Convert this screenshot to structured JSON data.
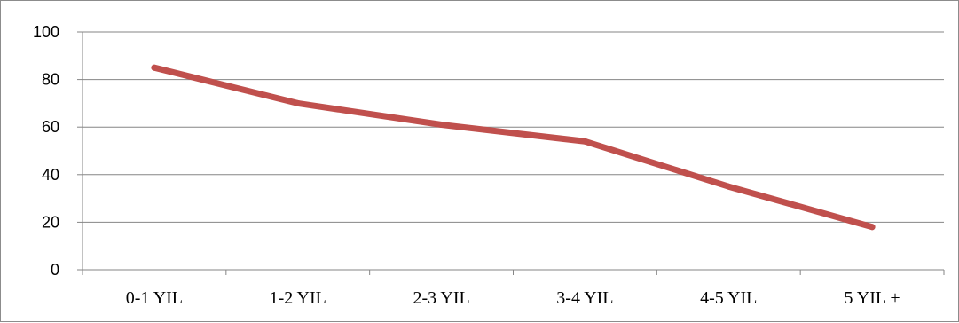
{
  "chart_data": {
    "type": "line",
    "title": "",
    "xlabel": "",
    "ylabel": "",
    "categories": [
      "0-1 YIL",
      "1-2 YIL",
      "2-3 YIL",
      "3-4 YIL",
      "4-5 YIL",
      "5 YIL +"
    ],
    "series": [
      {
        "values": [
          85,
          70,
          61,
          54,
          35,
          18
        ]
      }
    ],
    "ylim": [
      0,
      100
    ],
    "yticks": [
      "0",
      "20",
      "40",
      "60",
      "80",
      "100"
    ],
    "grid": true,
    "legend": "none",
    "colors": {
      "line": "#c0504d",
      "grid": "#868686",
      "axis": "#868686"
    }
  }
}
